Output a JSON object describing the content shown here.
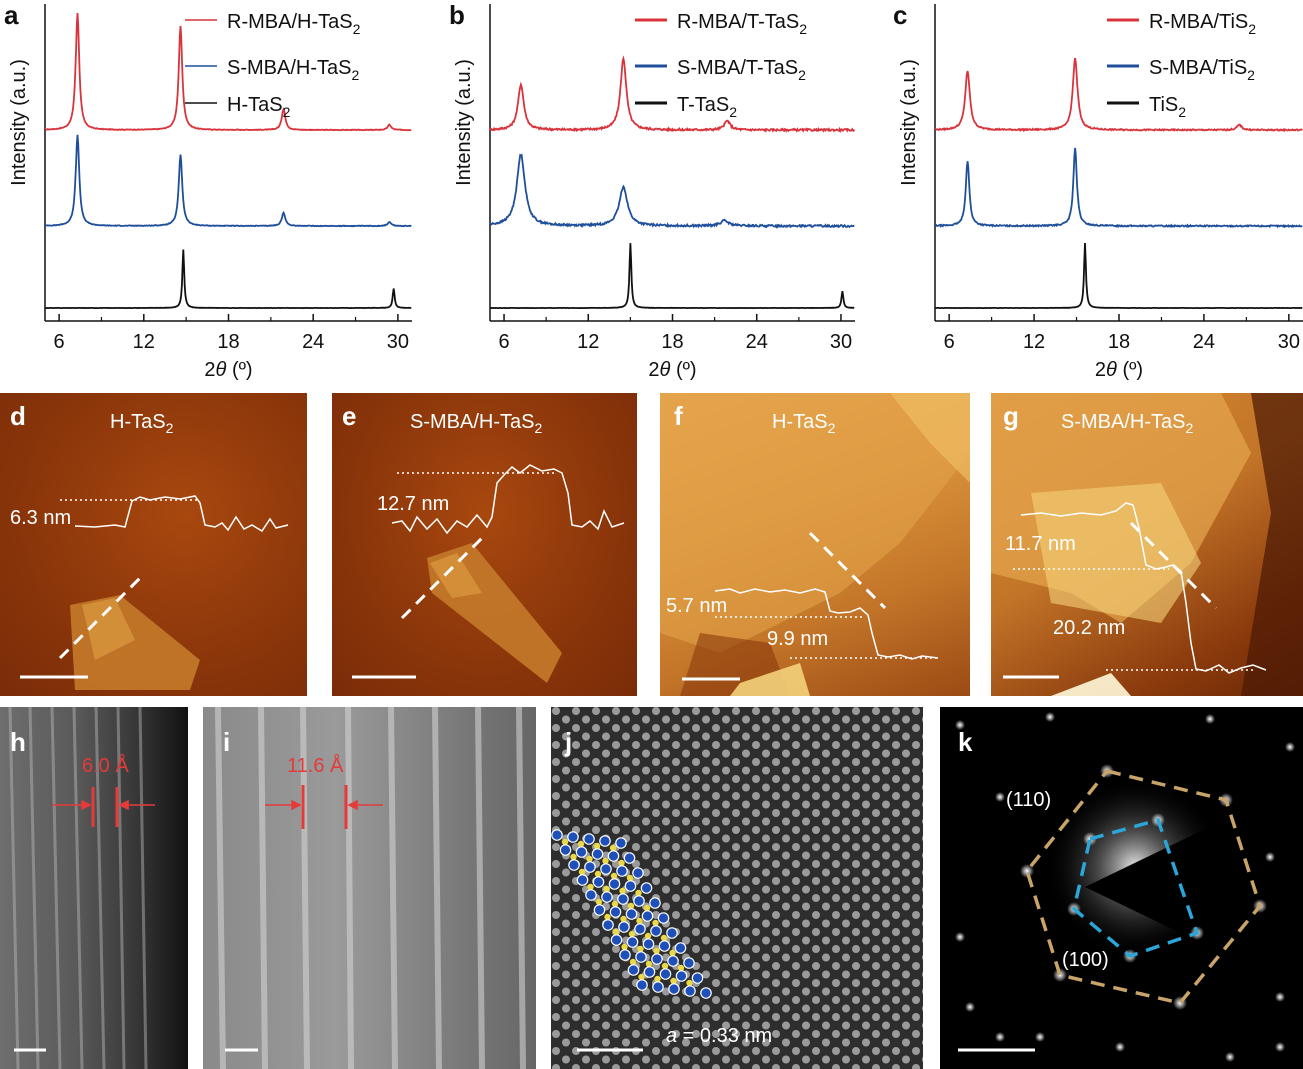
{
  "colors": {
    "red": "#d9343c",
    "blue": "#1f4f9a",
    "black": "#111111",
    "afm_dark": "#7a2a08",
    "afm_light": "#d98a32",
    "tem_red": "#e53a3a",
    "tan": "#c8a46a",
    "cyan": "#2aa6d8"
  },
  "chart_data": [
    {
      "type": "line",
      "panel": "a",
      "xlabel_main": "2",
      "xlabel_theta": "θ",
      "xlabel_unit": " (º)",
      "ylabel": "Intensity (a.u.)",
      "xlim": [
        5,
        31
      ],
      "xticks": [
        "6",
        "12",
        "18",
        "24",
        "30"
      ],
      "series": [
        {
          "name_main": "R-MBA/H-TaS",
          "name_sub": "2",
          "color": "#d9343c",
          "offset": 2,
          "peaks": [
            [
              7.3,
              9
            ],
            [
              14.6,
              8
            ],
            [
              21.9,
              1.6
            ],
            [
              29.4,
              0.4
            ]
          ],
          "width": 0.15,
          "noise": 0.05
        },
        {
          "name_main": "S-MBA/H-TaS",
          "name_sub": "2",
          "color": "#1f4f9a",
          "offset": 1,
          "peaks": [
            [
              7.3,
              7
            ],
            [
              14.6,
              5.5
            ],
            [
              21.9,
              1
            ],
            [
              29.4,
              0.3
            ]
          ],
          "width": 0.15,
          "noise": 0.05
        },
        {
          "name_main": "H-TaS",
          "name_sub": "2",
          "color": "#111111",
          "offset": 0,
          "peaks": [
            [
              14.8,
              4.5
            ],
            [
              29.7,
              1.5
            ]
          ],
          "width": 0.08,
          "noise": 0.02
        }
      ]
    },
    {
      "type": "line",
      "panel": "b",
      "xlabel_main": "2",
      "xlabel_theta": "θ",
      "xlabel_unit": " (º)",
      "ylabel": "Intensity (a.u.)",
      "xlim": [
        5,
        31
      ],
      "xticks": [
        "6",
        "12",
        "18",
        "24",
        "30"
      ],
      "series": [
        {
          "name_main": "R-MBA/T-TaS",
          "name_sub": "2",
          "color": "#d9343c",
          "offset": 2,
          "peaks": [
            [
              7.2,
              3.5
            ],
            [
              14.5,
              5.5
            ],
            [
              21.9,
              0.7
            ]
          ],
          "width": 0.25,
          "noise": 0.15
        },
        {
          "name_main": "S-MBA/T-TaS",
          "name_sub": "2",
          "color": "#1f4f9a",
          "offset": 1,
          "peaks": [
            [
              7.2,
              5.5
            ],
            [
              14.5,
              3
            ],
            [
              21.7,
              0.4
            ]
          ],
          "width": 0.35,
          "noise": 0.15
        },
        {
          "name_main": "T-TaS",
          "name_sub": "2",
          "color": "#111111",
          "offset": 0,
          "peaks": [
            [
              15.0,
              5
            ],
            [
              30.1,
              1.3
            ]
          ],
          "width": 0.08,
          "noise": 0.02
        }
      ]
    },
    {
      "type": "line",
      "panel": "c",
      "xlabel_main": "2",
      "xlabel_theta": "θ",
      "xlabel_unit": " (º)",
      "ylabel": "Intensity (a.u.)",
      "xlim": [
        5,
        31
      ],
      "xticks": [
        "6",
        "12",
        "18",
        "24",
        "30"
      ],
      "series": [
        {
          "name_main": "R-MBA/TiS",
          "name_sub": "2",
          "color": "#d9343c",
          "offset": 2,
          "peaks": [
            [
              7.3,
              4.5
            ],
            [
              14.9,
              5.5
            ],
            [
              26.5,
              0.4
            ]
          ],
          "width": 0.2,
          "noise": 0.1
        },
        {
          "name_main": "S-MBA/TiS",
          "name_sub": "2",
          "color": "#1f4f9a",
          "offset": 1,
          "peaks": [
            [
              7.3,
              5
            ],
            [
              14.9,
              6
            ]
          ],
          "width": 0.15,
          "noise": 0.1
        },
        {
          "name_main": "TiS",
          "name_sub": "2",
          "color": "#111111",
          "offset": 0,
          "peaks": [
            [
              15.6,
              5
            ]
          ],
          "width": 0.08,
          "noise": 0.02
        }
      ]
    }
  ],
  "afm": [
    {
      "label": "d",
      "title_main": "H-TaS",
      "title_sub": "2",
      "heights": [
        "6.3 nm"
      ]
    },
    {
      "label": "e",
      "title_main": "S-MBA/H-TaS",
      "title_sub": "2",
      "heights": [
        "12.7 nm"
      ]
    },
    {
      "label": "f",
      "title_main": "H-TaS",
      "title_sub": "2",
      "heights": [
        "5.7 nm",
        "9.9 nm"
      ]
    },
    {
      "label": "g",
      "title_main": "S-MBA/H-TaS",
      "title_sub": "2",
      "heights": [
        "11.7 nm",
        "20.2 nm"
      ]
    }
  ],
  "tem": [
    {
      "label": "h",
      "spacing": "6.0 Å"
    },
    {
      "label": "i",
      "spacing": "11.6 Å"
    },
    {
      "label": "j",
      "lattice_var": "a",
      "lattice_val": " = 0.33 nm"
    },
    {
      "label": "k",
      "index_110": "(110)",
      "index_100": "(100)"
    }
  ]
}
